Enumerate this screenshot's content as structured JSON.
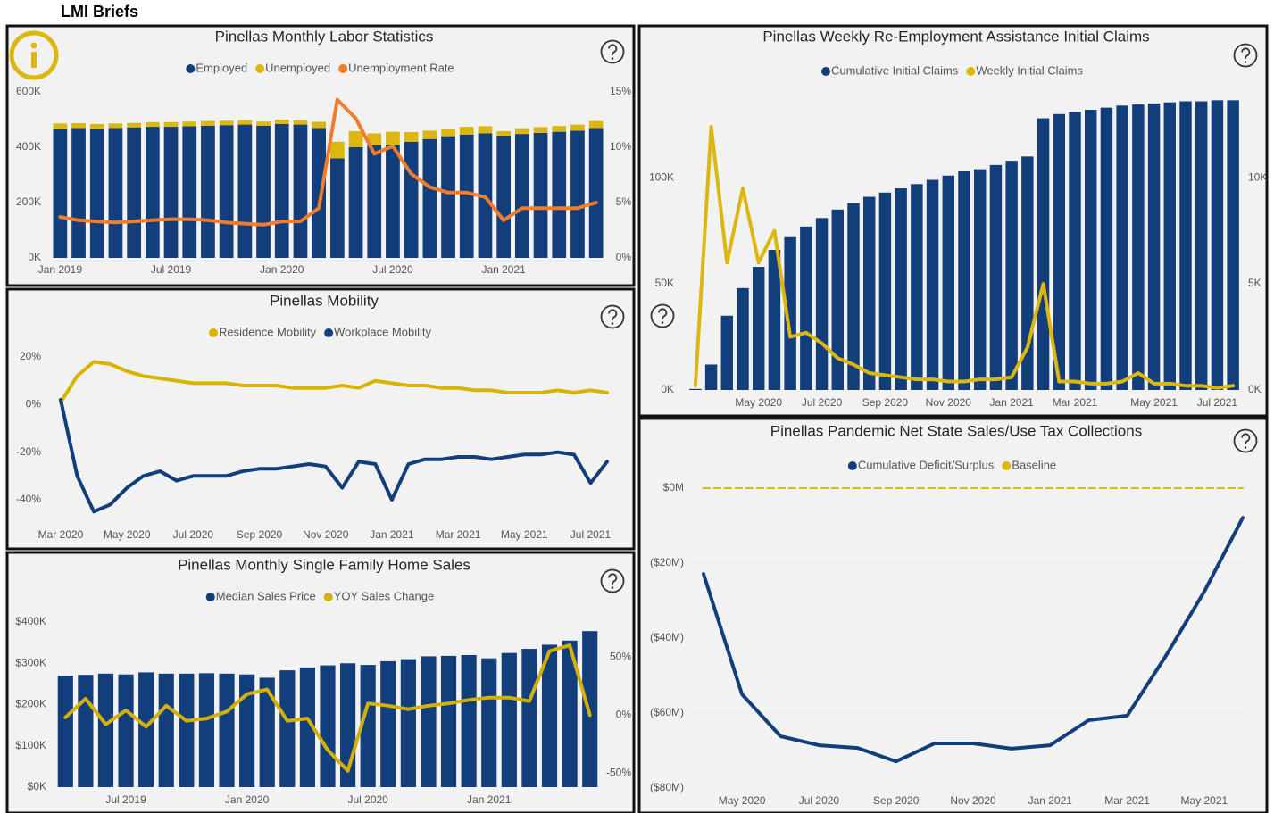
{
  "header": {
    "title": "LMI Briefs"
  },
  "chart_data": [
    {
      "type": "combo",
      "title": "Pinellas Monthly Labor Statistics",
      "stacked": true,
      "categories": [
        "Jan 2019",
        null,
        null,
        null,
        null,
        null,
        "Jul 2019",
        null,
        null,
        null,
        null,
        null,
        "Jan 2020",
        null,
        null,
        null,
        null,
        null,
        "Jul 2020",
        null,
        null,
        null,
        null,
        null,
        "Jan 2021",
        null,
        null,
        null,
        null,
        null
      ],
      "series": [
        {
          "name": "Employed",
          "type": "bar",
          "color": "#123f7c",
          "values": [
            468,
            470,
            468,
            470,
            472,
            474,
            474,
            476,
            478,
            480,
            482,
            478,
            484,
            482,
            470,
            360,
            400,
            408,
            410,
            420,
            430,
            440,
            446,
            450,
            442,
            448,
            452,
            456,
            460,
            470
          ]
        },
        {
          "name": "Unemployed",
          "type": "bar",
          "color": "#dcb70f",
          "values": [
            18,
            17,
            16,
            16,
            16,
            17,
            17,
            17,
            17,
            16,
            16,
            15,
            16,
            16,
            22,
            60,
            58,
            42,
            46,
            35,
            30,
            28,
            28,
            26,
            16,
            21,
            21,
            21,
            22,
            25
          ]
        },
        {
          "name": "Unemployment Rate",
          "type": "line",
          "axis": "y2",
          "color": "#f07c2c",
          "values": [
            3.7,
            3.4,
            3.3,
            3.2,
            3.3,
            3.4,
            3.5,
            3.5,
            3.4,
            3.2,
            3.1,
            3.0,
            3.3,
            3.3,
            4.5,
            14.3,
            12.6,
            9.4,
            10.1,
            7.6,
            6.4,
            5.9,
            5.9,
            5.5,
            3.4,
            4.5,
            4.5,
            4.5,
            4.5,
            5.0
          ]
        }
      ],
      "ylim": [
        0,
        600
      ],
      "yticks": [
        {
          "value": 0,
          "label": "0K"
        },
        {
          "value": 200,
          "label": "200K"
        },
        {
          "value": 400,
          "label": "400K"
        },
        {
          "value": 600,
          "label": "600K"
        }
      ],
      "y2lim": [
        0,
        15
      ],
      "y2ticks": [
        {
          "value": 0,
          "label": "0%"
        },
        {
          "value": 5,
          "label": "5%"
        },
        {
          "value": 10,
          "label": "10%"
        },
        {
          "value": 15,
          "label": "15%"
        }
      ],
      "grid": false
    },
    {
      "type": "line",
      "title": "Pinellas Mobility",
      "categories": [
        "Mar 2020",
        null,
        null,
        null,
        "May 2020",
        null,
        null,
        null,
        "Jul 2020",
        null,
        null,
        null,
        "Sep 2020",
        null,
        null,
        null,
        "Nov 2020",
        null,
        null,
        null,
        "Jan 2021",
        null,
        null,
        null,
        "Mar 2021",
        null,
        null,
        null,
        "May 2021",
        null,
        null,
        null,
        "Jul 2021",
        null
      ],
      "series": [
        {
          "name": "Residence Mobility",
          "type": "line",
          "color": "#d9b300",
          "values": [
            1,
            12,
            18,
            17,
            14,
            12,
            11,
            10,
            9,
            9,
            9,
            8,
            8,
            8,
            7,
            7,
            7,
            8,
            7,
            10,
            9,
            8,
            8,
            7,
            7,
            6,
            6,
            5,
            5,
            5,
            6,
            5,
            6,
            5
          ]
        },
        {
          "name": "Workplace Mobility",
          "type": "line",
          "color": "#123f7c",
          "values": [
            2,
            -30,
            -45,
            -42,
            -35,
            -30,
            -28,
            -32,
            -30,
            -30,
            -30,
            -28,
            -27,
            -27,
            -26,
            -25,
            -26,
            -35,
            -24,
            -25,
            -40,
            -25,
            -23,
            -23,
            -22,
            -22,
            -23,
            -22,
            -21,
            -21,
            -20,
            -21,
            -33,
            -24
          ]
        }
      ],
      "ylim": [
        -48,
        25
      ],
      "yticks": [
        {
          "value": 20,
          "label": "20%"
        },
        {
          "value": 0,
          "label": "0%"
        },
        {
          "value": -20,
          "label": "-20%"
        },
        {
          "value": -40,
          "label": "-40%"
        }
      ],
      "grid": false
    },
    {
      "type": "combo",
      "title": "Pinellas Monthly Single Family Home Sales",
      "categories": [
        null,
        null,
        null,
        "Jul 2019",
        null,
        null,
        null,
        null,
        null,
        "Jan 2020",
        null,
        null,
        null,
        null,
        null,
        "Jul 2020",
        null,
        null,
        null,
        null,
        null,
        "Jan 2021",
        null,
        null,
        null,
        null,
        null
      ],
      "series": [
        {
          "name": "Median Sales Price",
          "type": "bar",
          "color": "#123f7c",
          "values": [
            270,
            272,
            275,
            273,
            278,
            275,
            275,
            276,
            275,
            273,
            265,
            283,
            290,
            295,
            300,
            296,
            305,
            310,
            317,
            318,
            320,
            312,
            325,
            335,
            345,
            355,
            378
          ]
        },
        {
          "name": "YOY Sales Change",
          "type": "line",
          "axis": "y2",
          "color": "#d4b10a",
          "values": [
            -2,
            14,
            -8,
            4,
            -10,
            8,
            -5,
            -3,
            3,
            18,
            22,
            -5,
            -3,
            -30,
            -48,
            10,
            8,
            5,
            8,
            10,
            13,
            15,
            15,
            12,
            55,
            60,
            0
          ]
        }
      ],
      "ylim": [
        0,
        400
      ],
      "yticks": [
        {
          "value": 0,
          "label": "$0K"
        },
        {
          "value": 100,
          "label": "$100K"
        },
        {
          "value": 200,
          "label": "$200K"
        },
        {
          "value": 300,
          "label": "$300K"
        },
        {
          "value": 400,
          "label": "$400K"
        }
      ],
      "y2lim": [
        -62,
        80
      ],
      "y2ticks": [
        {
          "value": -50,
          "label": "-50%"
        },
        {
          "value": 0,
          "label": "0%"
        },
        {
          "value": 50,
          "label": "50%"
        }
      ],
      "grid": false
    },
    {
      "type": "combo",
      "title": "Pinellas Weekly Re-Employment Assistance Initial Claims",
      "categories": [
        null,
        null,
        null,
        null,
        "May 2020",
        null,
        null,
        null,
        "Jul 2020",
        null,
        null,
        null,
        "Sep 2020",
        null,
        null,
        null,
        "Nov 2020",
        null,
        null,
        null,
        "Jan 2021",
        null,
        null,
        null,
        "Mar 2021",
        null,
        null,
        null,
        null,
        "May 2021",
        null,
        null,
        null,
        "Jul 2021",
        null
      ],
      "series": [
        {
          "name": "Cumulative Initial Claims",
          "type": "bar",
          "color": "#123f7c",
          "values": [
            0.5,
            12,
            35,
            48,
            58,
            66,
            72,
            77,
            81,
            85,
            88,
            91,
            93,
            95,
            97,
            99,
            101,
            103,
            104,
            106,
            108,
            110,
            128,
            130,
            131,
            132,
            133,
            134,
            134.5,
            135,
            135.5,
            136,
            136,
            136.5,
            136.5
          ]
        },
        {
          "name": "Weekly Initial Claims",
          "type": "line",
          "axis": "y2",
          "color": "#dcb70f",
          "values": [
            0.2,
            12.4,
            6,
            9.5,
            6,
            7.5,
            2.5,
            2.7,
            2.2,
            1.5,
            1.2,
            0.8,
            0.7,
            0.6,
            0.5,
            0.5,
            0.4,
            0.4,
            0.5,
            0.5,
            0.6,
            2,
            5,
            0.4,
            0.4,
            0.3,
            0.3,
            0.4,
            0.8,
            0.3,
            0.3,
            0.2,
            0.2,
            0.1,
            0.2
          ]
        }
      ],
      "ylim": [
        0,
        140
      ],
      "yticks": [
        {
          "value": 0,
          "label": "0K"
        },
        {
          "value": 50,
          "label": "50K"
        },
        {
          "value": 100,
          "label": "100K"
        }
      ],
      "y2lim": [
        0,
        14
      ],
      "y2ticks": [
        {
          "value": 0,
          "label": "0K"
        },
        {
          "value": 5,
          "label": "5K"
        },
        {
          "value": 10,
          "label": "10K"
        }
      ],
      "grid": false
    },
    {
      "type": "line",
      "title": "Pinellas Pandemic Net State Sales/Use Tax Collections",
      "categories": [
        null,
        "May 2020",
        null,
        "Jul 2020",
        null,
        "Sep 2020",
        null,
        "Nov 2020",
        null,
        "Jan 2021",
        null,
        "Mar 2021",
        null,
        "May 2021",
        null
      ],
      "series": [
        {
          "name": "Cumulative Deficit/Surplus",
          "type": "line",
          "color": "#123f7c",
          "values": [
            -22.9,
            -55,
            -66.2,
            -68.6,
            -69.3,
            -72.9,
            -68.1,
            -68.1,
            -69.5,
            -68.6,
            -61.9,
            -60.7,
            -44.8,
            -27.6,
            -7.9
          ]
        },
        {
          "name": "Baseline",
          "type": "line",
          "dashed": true,
          "color": "#dcb70f",
          "values": [
            0,
            0,
            0,
            0,
            0,
            0,
            0,
            0,
            0,
            0,
            0,
            0,
            0,
            0,
            0
          ]
        }
      ],
      "ylim": [
        -82,
        3
      ],
      "yticks": [
        {
          "value": 0,
          "label": "$0M"
        },
        {
          "value": -20,
          "label": "($20M)"
        },
        {
          "value": -40,
          "label": "($40M)"
        },
        {
          "value": -60,
          "label": "($60M)"
        },
        {
          "value": -80,
          "label": "($80M)"
        }
      ],
      "grid": true
    }
  ]
}
